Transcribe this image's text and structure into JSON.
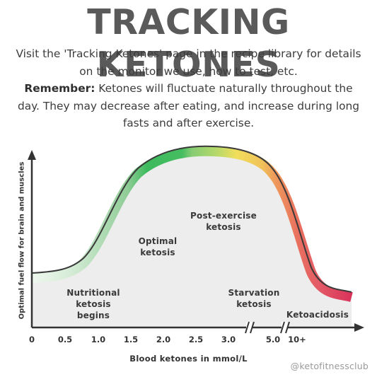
{
  "title": "TRACKING KETONES",
  "intro": {
    "line1": "Visit the 'Tracking Ketones' page in the recipe library for details",
    "line2": "on the monitor we use, how to test, etc.",
    "remember_label": "Remember:",
    "remember_text": "Ketones will fluctuate naturally throughout the",
    "line4": "day. They may decrease after eating, and increase during long",
    "line5": "fasts and after exercise."
  },
  "diagram": {
    "y_axis_label": "Optimal fuel flow for brain and muscles",
    "x_axis_label": "Blood ketones in mmol/L",
    "x_ticks": [
      "0",
      "0.5",
      "1.0",
      "1.5",
      "2.0",
      "2.5",
      "3.0",
      "5.0",
      "10+"
    ],
    "zones": {
      "nutritional": [
        "Nutritional",
        "ketosis",
        "begins"
      ],
      "optimal": [
        "Optimal",
        "ketosis"
      ],
      "post_exercise": [
        "Post-exercise",
        "ketosis"
      ],
      "starvation": [
        "Starvation",
        "ketosis"
      ],
      "ketoacidosis": [
        "Ketoacidosis"
      ]
    },
    "colors": {
      "axis": "#333333",
      "fill": "#ededed",
      "curve_start": "#e6f3e6",
      "curve_light_green": "#c8e6c9",
      "curve_mid_green": "#8fcc96",
      "curve_green": "#3dba5e",
      "curve_yellow": "#f1de5b",
      "curve_orange": "#ee9a5a",
      "curve_red": "#e35a66",
      "curve_crimson": "#d9325a"
    }
  },
  "credit": "@ketofitnessclub"
}
